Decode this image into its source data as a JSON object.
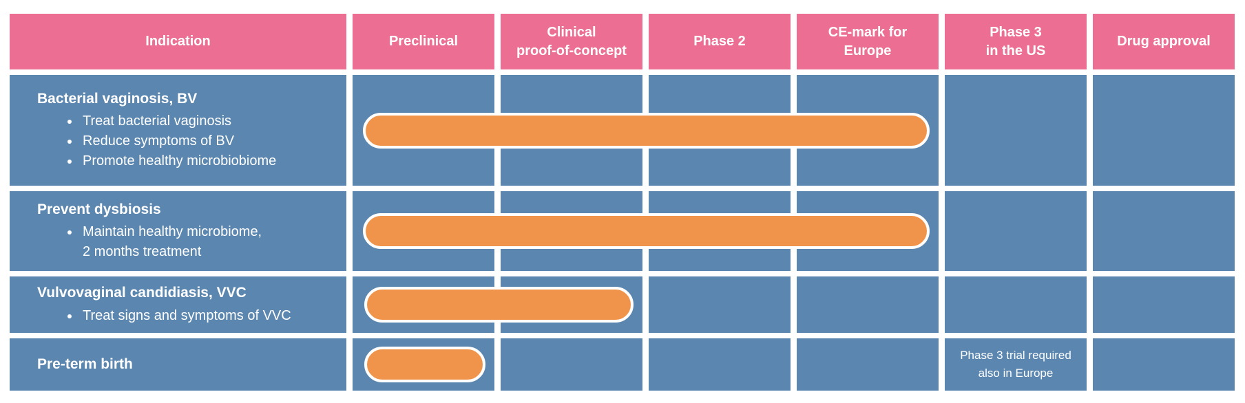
{
  "colors": {
    "header": "#ec6f93",
    "cell": "#5b86af",
    "bar": "#f0944b",
    "bar_border": "#ffffff",
    "text": "#ffffff"
  },
  "header": {
    "columns": [
      "Indication",
      "Preclinical",
      "Clinical\nproof-of-concept",
      "Phase 2",
      "CE-mark for\nEurope",
      "Phase 3\nin the US",
      "Drug approval"
    ]
  },
  "rows": [
    {
      "title": "Bacterial vaginosis, BV",
      "bullets": [
        "Treat bacterial vaginosis",
        "Reduce symptoms of BV",
        "Promote healthy microbiobiome"
      ]
    },
    {
      "title": "Prevent dysbiosis",
      "bullets": [
        "Maintain healthy microbiome,\n2  months treatment"
      ]
    },
    {
      "title": "Vulvovaginal candidiasis, VVC",
      "bullets": [
        "Treat signs and symptoms of VVC"
      ]
    },
    {
      "title": "Pre-term birth",
      "bullets": [],
      "note": "Phase 3 trial required\nalso in Europe",
      "note_column": "Phase 3 in the US"
    }
  ],
  "chart_data": {
    "type": "bar",
    "subtype": "horizontal-pipeline-gantt",
    "stages": [
      "Preclinical",
      "Clinical proof-of-concept",
      "Phase 2",
      "CE-mark for Europe",
      "Phase 3 in the US",
      "Drug approval"
    ],
    "categories": [
      "Bacterial vaginosis, BV",
      "Prevent dysbiosis",
      "Vulvovaginal candidiasis, VVC",
      "Pre-term birth"
    ],
    "axis_note": "stage units: 0 = start of Preclinical, each stage column = 1 unit",
    "bars": [
      {
        "row": 0,
        "category": "Bacterial vaginosis, BV",
        "start_stage": 0.07,
        "end_stage": 3.9,
        "covers": [
          "Preclinical",
          "Clinical proof-of-concept",
          "Phase 2",
          "CE-mark for Europe"
        ]
      },
      {
        "row": 1,
        "category": "Prevent dysbiosis",
        "start_stage": 0.07,
        "end_stage": 3.9,
        "covers": [
          "Preclinical",
          "Clinical proof-of-concept",
          "Phase 2",
          "CE-mark for Europe"
        ]
      },
      {
        "row": 2,
        "category": "Vulvovaginal candidiasis, VVC",
        "start_stage": 0.08,
        "end_stage": 1.9,
        "covers": [
          "Preclinical",
          "Clinical proof-of-concept"
        ]
      },
      {
        "row": 3,
        "category": "Pre-term birth",
        "start_stage": 0.08,
        "end_stage": 0.9,
        "covers": [
          "Preclinical"
        ]
      }
    ],
    "annotations": [
      {
        "row": 3,
        "stage": "Phase 3 in the US",
        "text": "Phase 3 trial required also in Europe"
      }
    ]
  }
}
